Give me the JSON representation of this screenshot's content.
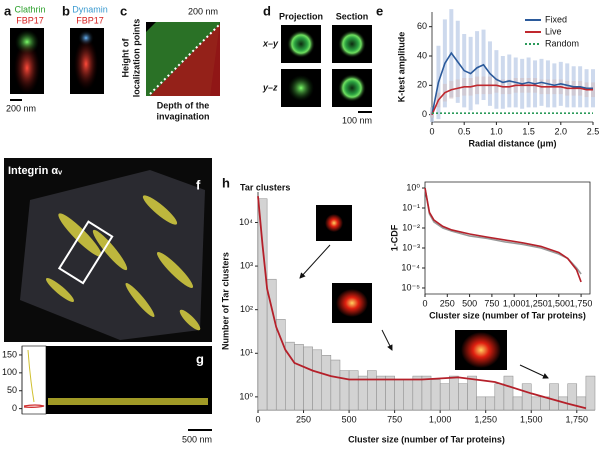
{
  "panels": {
    "a": {
      "label": "a",
      "top": "Clathrin",
      "bottom": "FBP17",
      "scale": "200 nm"
    },
    "b": {
      "label": "b",
      "top": "Dynamin",
      "bottom": "FBP17"
    },
    "c": {
      "label": "c",
      "scale": "200 nm",
      "ylabel": [
        "Height of",
        "localization points"
      ],
      "xlabel": [
        "Depth of the",
        "invagination"
      ]
    },
    "d": {
      "label": "d",
      "cols": [
        "Projection",
        "Section"
      ],
      "rows": [
        "x–y",
        "y–z"
      ],
      "scale": "100 nm"
    },
    "e": {
      "label": "e"
    },
    "f": {
      "label": "f",
      "title": "Integrin αᵥ"
    },
    "g": {
      "label": "g",
      "scale": "500 nm"
    },
    "h": {
      "label": "h"
    }
  },
  "chart_data": [
    {
      "type": "line",
      "xlabel": "Radial distance (μm)",
      "ylabel": "K-test amplitude",
      "x": [
        0,
        0.1,
        0.2,
        0.3,
        0.4,
        0.5,
        0.6,
        0.7,
        0.8,
        0.9,
        1,
        1.1,
        1.2,
        1.3,
        1.4,
        1.5,
        1.6,
        1.7,
        1.8,
        1.9,
        2,
        2.1,
        2.2,
        2.3,
        2.4,
        2.5
      ],
      "series": [
        {
          "name": "Fixed",
          "color": "#2b5a9b",
          "values": [
            0,
            22,
            35,
            42,
            36,
            30,
            28,
            32,
            34,
            28,
            24,
            22,
            23,
            22,
            21,
            22,
            21,
            22,
            21,
            20,
            21,
            20,
            19,
            19,
            18,
            18
          ],
          "errors": [
            5,
            25,
            30,
            30,
            28,
            25,
            25,
            25,
            24,
            22,
            20,
            18,
            18,
            17,
            17,
            17,
            16,
            16,
            16,
            15,
            15,
            15,
            14,
            14,
            13,
            13
          ],
          "error_color": "#b9c9e6"
        },
        {
          "name": "Live",
          "color": "#c0282e",
          "values": [
            0,
            10,
            15,
            17,
            18,
            19,
            19,
            20,
            20,
            20,
            20,
            19,
            19,
            20,
            20,
            20,
            20,
            19,
            19,
            19,
            19,
            18,
            18,
            18,
            17,
            17
          ],
          "errors": [
            2,
            5,
            6,
            6,
            6,
            6,
            6,
            6,
            6,
            6,
            5,
            5,
            5,
            5,
            5,
            5,
            5,
            5,
            5,
            5,
            5,
            5,
            5,
            5,
            5,
            5
          ],
          "error_color": "#d2c4ca"
        },
        {
          "name": "Random",
          "color": "#2a9a5a",
          "linestyle": "dotted",
          "values": [
            1,
            1,
            1,
            1,
            1,
            1,
            1,
            1,
            1,
            1,
            1,
            1,
            1,
            1,
            1,
            1,
            1,
            1,
            1,
            1,
            1,
            1,
            1,
            1,
            1,
            1
          ]
        }
      ],
      "xlim": [
        0,
        2.5
      ],
      "ylim": [
        -5,
        70
      ],
      "xticks": [
        0,
        0.5,
        {
          "value": 1,
          "label": "1.0"
        },
        1.5,
        {
          "value": 2,
          "label": "2.0"
        },
        2.5
      ],
      "yticks": [
        0,
        20,
        40,
        60
      ],
      "legend": "upper right"
    },
    {
      "type": "histogram",
      "title": "Tar clusters",
      "xlabel": "Cluster size (number of Tar proteins)",
      "ylabel": "Number of Tar clusters",
      "bins": [
        0,
        50,
        100,
        150,
        200,
        250,
        300,
        350,
        400,
        450,
        500,
        550,
        600,
        650,
        700,
        750,
        800,
        850,
        900,
        950,
        1000,
        1050,
        1100,
        1150,
        1200,
        1250,
        1300,
        1350,
        1400,
        1450,
        1500,
        1550,
        1600,
        1650,
        1700,
        1750,
        1800,
        1850
      ],
      "values": [
        35000,
        500,
        60,
        18,
        16,
        14,
        12,
        9,
        7,
        4,
        4,
        3,
        4,
        3,
        3,
        2.5,
        2.5,
        3,
        3,
        2.5,
        2,
        3,
        2,
        3,
        1,
        1,
        2,
        3,
        1,
        2,
        1,
        1,
        2,
        1,
        2,
        1,
        3
      ],
      "color": "#d3d3d3",
      "fit": {
        "color": "#b5202a",
        "x": [
          0,
          25,
          50,
          100,
          150,
          200,
          300,
          400,
          500,
          700,
          900,
          1100,
          1300,
          1500,
          1700,
          1800
        ],
        "values": [
          40000,
          3000,
          300,
          40,
          12,
          6,
          4,
          3,
          2.5,
          2.5,
          2.5,
          2.8,
          2.2,
          1.2,
          0.7,
          0.55
        ]
      },
      "xlim": [
        0,
        1850
      ],
      "ylim": [
        0.5,
        50000
      ],
      "yscale": "log",
      "xticks": [
        0,
        250,
        500,
        750,
        {
          "value": 1000,
          "label": "1,000"
        },
        {
          "value": 1250,
          "label": "1,250"
        },
        {
          "value": 1500,
          "label": "1,500"
        },
        {
          "value": 1750,
          "label": "1,750"
        }
      ],
      "yticks": [
        {
          "value": 1,
          "label": "10⁰"
        },
        {
          "value": 10,
          "label": "10¹"
        },
        {
          "value": 100,
          "label": "10²"
        },
        {
          "value": 1000,
          "label": "10³"
        },
        {
          "value": 10000,
          "label": "10⁴"
        }
      ]
    },
    {
      "type": "line",
      "xlabel": "Cluster size (number of Tar proteins)",
      "ylabel": "1-CDF",
      "x": [
        0,
        50,
        100,
        200,
        300,
        500,
        700,
        900,
        1100,
        1300,
        1500,
        1600,
        1700,
        1750,
        1800
      ],
      "series": [
        {
          "color": "#999999",
          "values": [
            1,
            0.05,
            0.02,
            0.01,
            0.007,
            0.004,
            0.003,
            0.002,
            0.0015,
            0.001,
            0.0005,
            0.0003,
            0.0001,
            5e-05,
            null
          ]
        },
        {
          "color": "#b5202a",
          "values": [
            1,
            0.06,
            0.025,
            0.012,
            0.008,
            0.005,
            0.0035,
            0.0025,
            0.0018,
            0.0012,
            0.0006,
            0.0003,
            8e-05,
            2e-05,
            null
          ]
        }
      ],
      "xlim": [
        0,
        1850
      ],
      "ylim": [
        5e-06,
        2
      ],
      "yscale": "log",
      "xticks": [
        0,
        250,
        500,
        750,
        {
          "value": 1000,
          "label": "1,000"
        },
        {
          "value": 1250,
          "label": "1,250"
        },
        {
          "value": 1500,
          "label": "1,500"
        },
        {
          "value": 1750,
          "label": "1,750"
        }
      ],
      "yticks": [
        {
          "value": 1,
          "label": "10⁰"
        },
        {
          "value": 0.1,
          "label": "10⁻¹"
        },
        {
          "value": 0.01,
          "label": "10⁻²"
        },
        {
          "value": 0.001,
          "label": "10⁻³"
        },
        {
          "value": 0.0001,
          "label": "10⁻⁴"
        },
        {
          "value": 1e-05,
          "label": "10⁻⁵"
        }
      ]
    },
    {
      "type": "profile",
      "ylim": [
        -15,
        175
      ],
      "yticks": [
        0,
        50,
        100,
        150
      ]
    }
  ]
}
